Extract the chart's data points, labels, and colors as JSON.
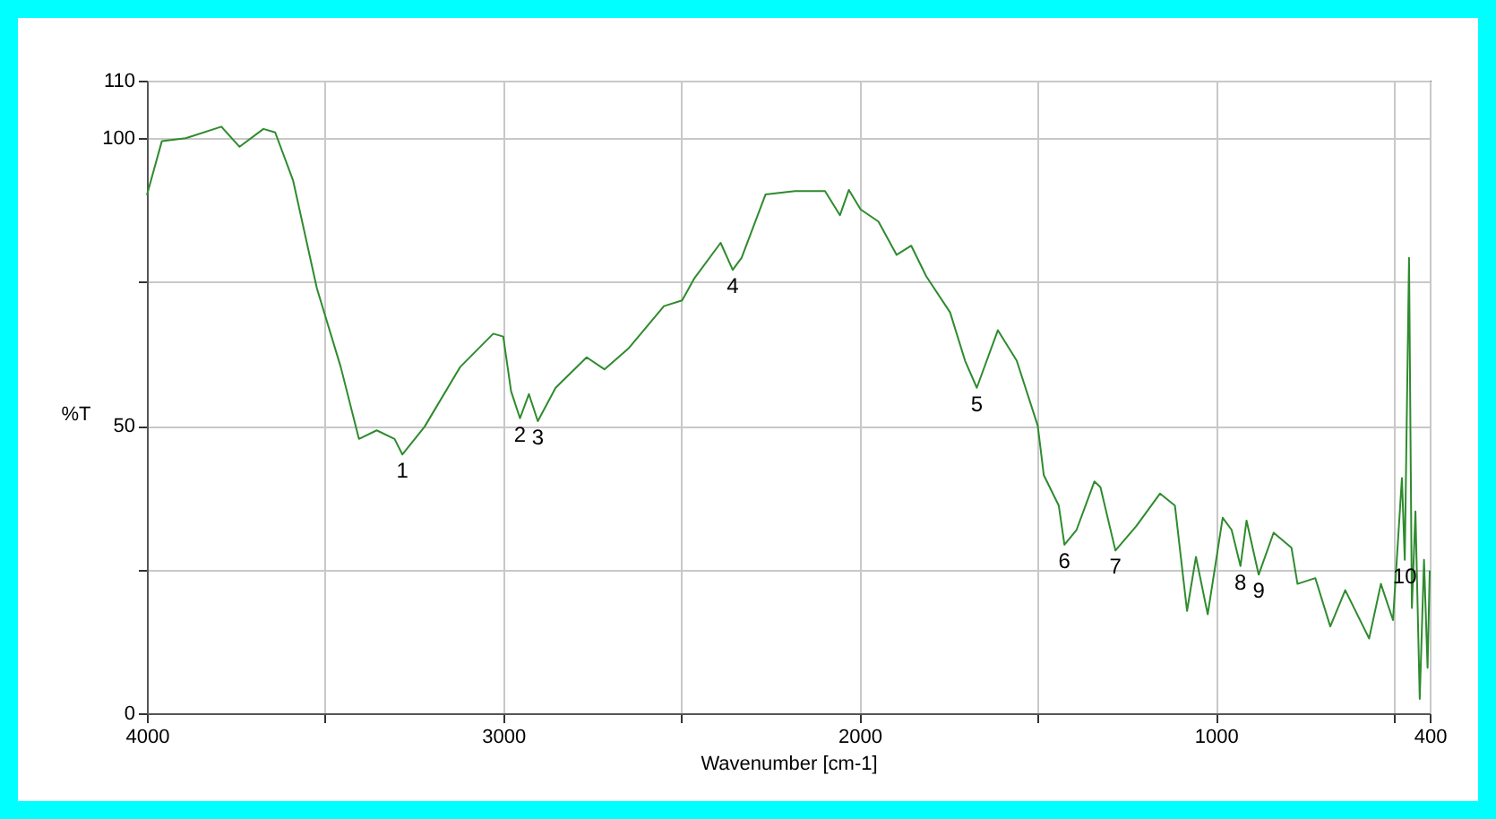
{
  "chart_data": {
    "type": "line",
    "xlabel": "Wavenumber [cm-1]",
    "ylabel": "%T",
    "x": [
      4000,
      3958,
      3891,
      3791,
      3740,
      3673,
      3640,
      3590,
      3523,
      3456,
      3405,
      3355,
      3305,
      3283,
      3221,
      3121,
      3028,
      3000,
      2978,
      2953,
      2928,
      2903,
      2853,
      2766,
      2716,
      2649,
      2549,
      2498,
      2465,
      2390,
      2356,
      2331,
      2264,
      2181,
      2097,
      2055,
      2030,
      1997,
      1947,
      1896,
      1855,
      1813,
      1746,
      1704,
      1671,
      1612,
      1559,
      1500,
      1483,
      1441,
      1425,
      1391,
      1341,
      1324,
      1282,
      1224,
      1157,
      1115,
      1081,
      1056,
      1023,
      981,
      956,
      931,
      914,
      880,
      838,
      788,
      771,
      721,
      679,
      637,
      570,
      537,
      503,
      478,
      470,
      458,
      450,
      440,
      428,
      416,
      406,
      400
    ],
    "series": [
      {
        "color": "#2e8b2e",
        "values": [
          90.1,
          99.5,
          100,
          102,
          98.5,
          101.6,
          101,
          92.7,
          73.9,
          60.2,
          47.7,
          49.2,
          47.7,
          45,
          49.8,
          60.2,
          66,
          65.5,
          56,
          51.3,
          55.5,
          50.8,
          56.6,
          61.9,
          59.8,
          63.4,
          70.8,
          71.8,
          75.5,
          81.8,
          77.1,
          79.2,
          90.2,
          90.8,
          90.8,
          86.6,
          91,
          87.6,
          85.5,
          79.7,
          81.3,
          76,
          69.7,
          61.3,
          56.6,
          66.6,
          61.3,
          50,
          41.4,
          36.1,
          29.3,
          31.9,
          40.3,
          39.3,
          28.3,
          32.5,
          38.2,
          36.1,
          17.8,
          27.2,
          17.2,
          34,
          31.9,
          25.6,
          33.5,
          24.1,
          31.4,
          28.8,
          22.5,
          23.5,
          15.1,
          21.4,
          13,
          22.5,
          16.2,
          40.9,
          26.7,
          79.2,
          18.3,
          35.1,
          2.5,
          26.7,
          7.9,
          24.8
        ]
      }
    ],
    "xlim": [
      4000,
      400
    ],
    "xticks": [
      4000,
      {
        "value": 3500,
        "label": null
      },
      3000,
      {
        "value": 2500,
        "label": null
      },
      2000,
      {
        "value": 1500,
        "label": null
      },
      1000,
      {
        "value": 500,
        "label": null
      },
      400
    ],
    "ylim": [
      0,
      110
    ],
    "yticks": [
      0,
      {
        "value": 25,
        "label": null
      },
      50,
      {
        "value": 75,
        "label": null
      },
      100,
      110
    ],
    "grid": true,
    "annotations": [
      {
        "text": "1",
        "x": 3283,
        "y": 45
      },
      {
        "text": "2",
        "x": 2953,
        "y": 51.3
      },
      {
        "text": "3",
        "x": 2903,
        "y": 50.8
      },
      {
        "text": "4",
        "x": 2356,
        "y": 77.1
      },
      {
        "text": "5",
        "x": 1671,
        "y": 56.6
      },
      {
        "text": "6",
        "x": 1425,
        "y": 29.3
      },
      {
        "text": "7",
        "x": 1282,
        "y": 28.3
      },
      {
        "text": "8",
        "x": 931,
        "y": 25.6
      },
      {
        "text": "9",
        "x": 880,
        "y": 24.1
      },
      {
        "text": "10",
        "x": 470,
        "y": 26.7
      }
    ]
  }
}
